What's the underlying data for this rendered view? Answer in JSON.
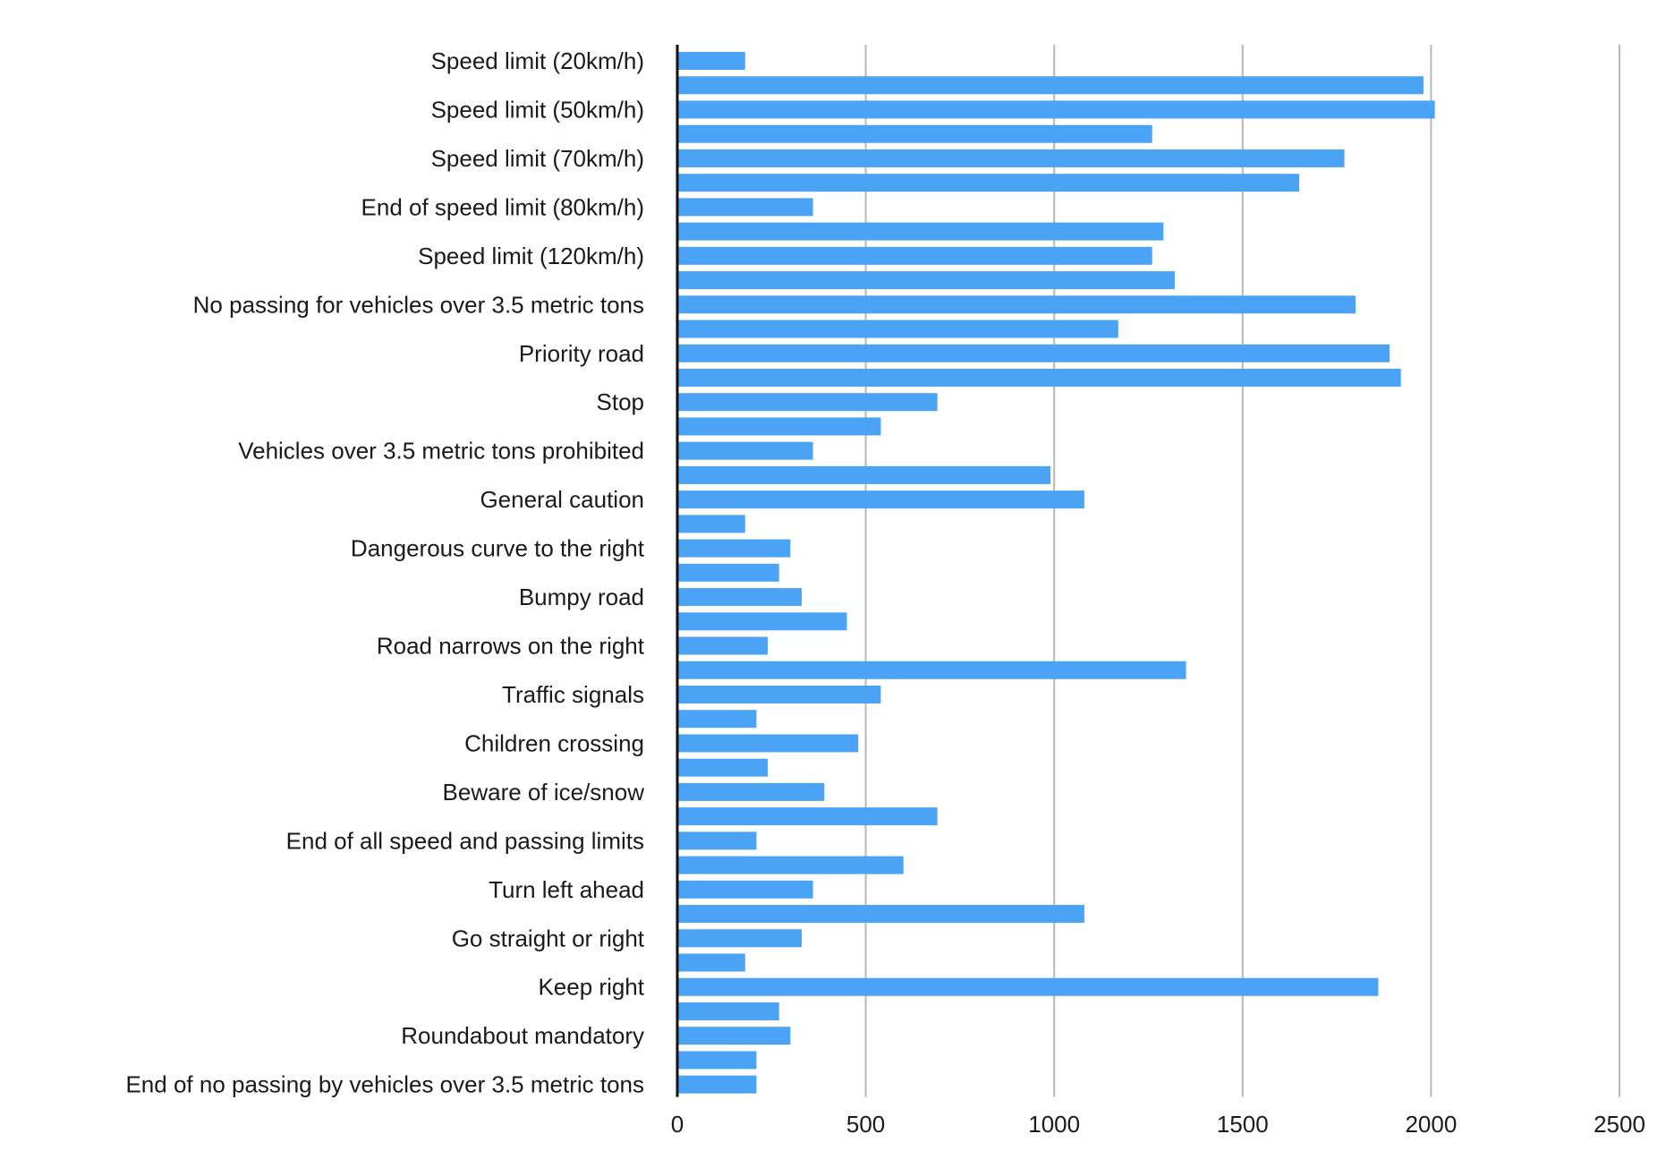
{
  "chart_data": {
    "type": "bar",
    "orientation": "horizontal",
    "title": "",
    "xlabel": "",
    "ylabel": "",
    "xlim": [
      0,
      2500
    ],
    "x_ticks": [
      "0",
      "500",
      "1000",
      "1500",
      "2000",
      "2500"
    ],
    "grid": "vertical",
    "legend": "none",
    "bar_color": "#4aa3f5",
    "grid_color": "#b8b8b8",
    "axis_color": "#111111",
    "categories": [
      "Speed limit (20km/h)",
      "",
      "Speed limit (50km/h)",
      "",
      "Speed limit (70km/h)",
      "",
      "End of speed limit (80km/h)",
      "",
      "Speed limit (120km/h)",
      "",
      "No passing for vehicles over 3.5 metric tons",
      "",
      "Priority road",
      "",
      "Stop",
      "",
      "Vehicles over 3.5 metric tons prohibited",
      "",
      "General caution",
      "",
      "Dangerous curve to the right",
      "",
      "Bumpy road",
      "",
      "Road narrows on the right",
      "",
      "Traffic signals",
      "",
      "Children crossing",
      "",
      "Beware of ice/snow",
      "",
      "End of all speed and passing limits",
      "",
      "Turn left ahead",
      "",
      "Go straight or right",
      "",
      "Keep right",
      "",
      "Roundabout mandatory",
      "",
      "End of no passing by vehicles over 3.5 metric tons"
    ],
    "values": [
      180,
      1980,
      2010,
      1260,
      1770,
      1650,
      360,
      1290,
      1260,
      1320,
      1800,
      1170,
      1890,
      1920,
      690,
      540,
      360,
      990,
      1080,
      180,
      300,
      270,
      330,
      450,
      240,
      1350,
      540,
      210,
      480,
      240,
      390,
      690,
      210,
      600,
      360,
      1080,
      330,
      180,
      1860,
      270,
      300,
      210,
      210
    ]
  }
}
